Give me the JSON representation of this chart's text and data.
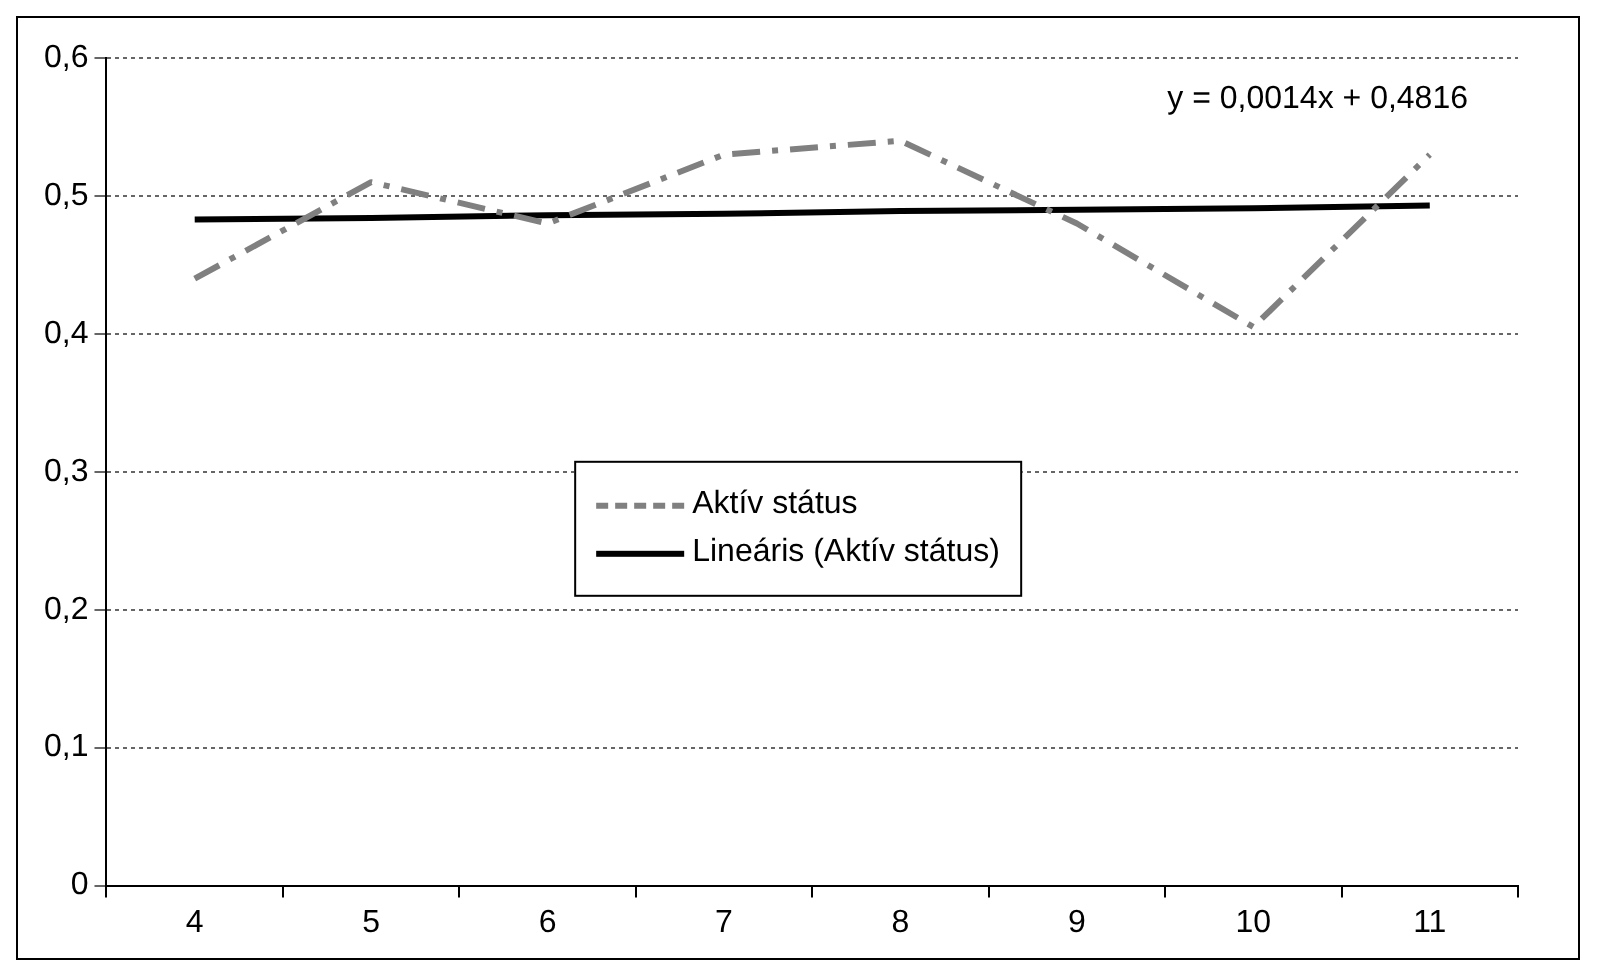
{
  "chart_data": {
    "type": "line",
    "categories": [
      "4",
      "5",
      "6",
      "7",
      "8",
      "9",
      "10",
      "11"
    ],
    "series": [
      {
        "name": "Aktív státus",
        "color": "#808080",
        "line_style": "dashed",
        "values": [
          0.44,
          0.51,
          0.48,
          0.53,
          0.54,
          0.48,
          0.405,
          0.53
        ]
      },
      {
        "name": "Lineáris (Aktív státus)",
        "color": "#000000",
        "line_style": "solid",
        "values": [
          0.483,
          0.484,
          0.486,
          0.487,
          0.489,
          0.49,
          0.491,
          0.493
        ]
      }
    ],
    "ylim": [
      0,
      0.6
    ],
    "yticks": [
      0,
      {
        "value": 0.1,
        "label": "0,1"
      },
      {
        "value": 0.2,
        "label": "0,2"
      },
      {
        "value": 0.3,
        "label": "0,3"
      },
      {
        "value": 0.4,
        "label": "0,4"
      },
      {
        "value": 0.5,
        "label": "0,5"
      },
      {
        "value": 0.6,
        "label": "0,6"
      }
    ],
    "grid": "y",
    "legend": "center",
    "marker": "none",
    "annotations": [
      "y = 0,0014x + 0,4816"
    ]
  }
}
